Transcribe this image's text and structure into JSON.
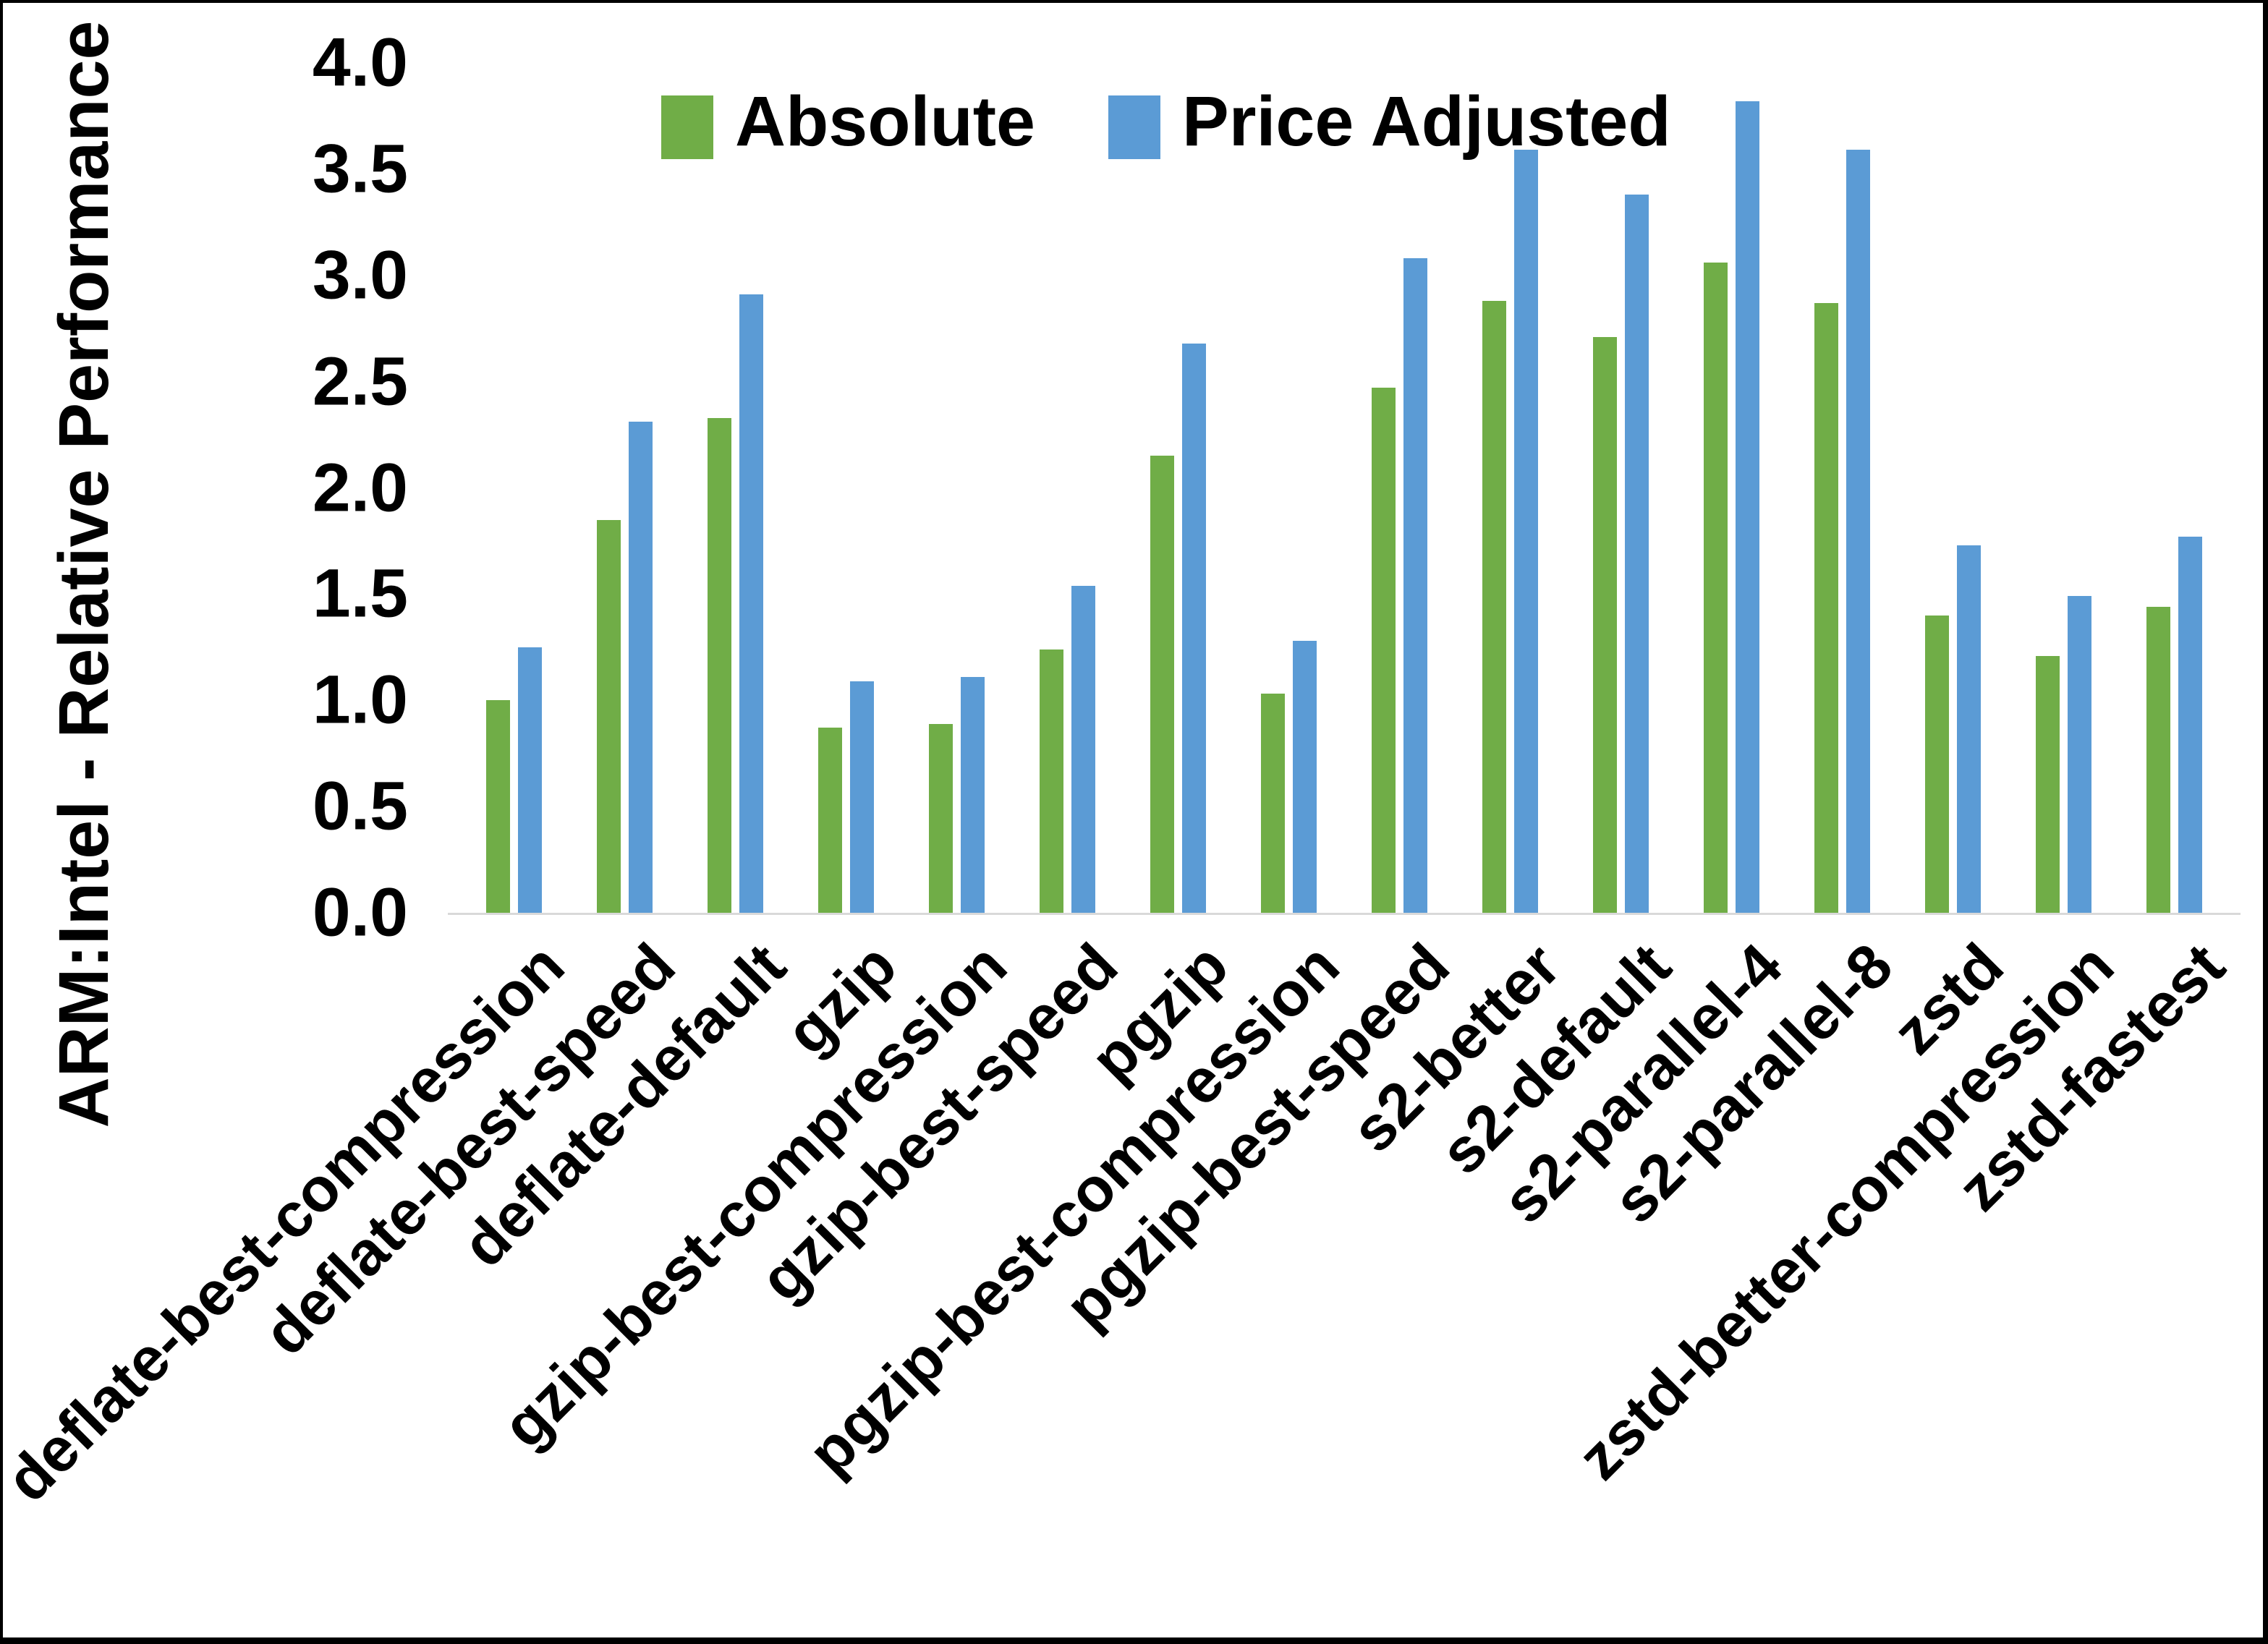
{
  "chart_data": {
    "type": "bar",
    "title": "",
    "ylabel": "ARM:Intel - Relative Performance",
    "xlabel": "",
    "ylim": [
      0.0,
      4.0
    ],
    "ytick_step": 0.5,
    "ytick_labels": [
      "0.0",
      "0.5",
      "1.0",
      "1.5",
      "2.0",
      "2.5",
      "3.0",
      "3.5",
      "4.0"
    ],
    "grid": false,
    "legend_position": "top",
    "categories": [
      "deflate-best-compression",
      "deflate-best-speed",
      "deflate-default",
      "gzip",
      "gzip-best-compression",
      "gzip-best-speed",
      "pgzip",
      "pgzip-best-compression",
      "pgzip-best-speed",
      "s2-better",
      "s2-default",
      "s2-parallel-4",
      "s2-parallel-8",
      "zstd",
      "zstd-better-compression",
      "zstd-fastest"
    ],
    "series": [
      {
        "name": "Absolute",
        "color": "#70AD47",
        "values": [
          1.0,
          1.85,
          2.33,
          0.87,
          0.89,
          1.24,
          2.15,
          1.03,
          2.47,
          2.88,
          2.71,
          3.06,
          2.87,
          1.4,
          1.21,
          1.44
        ]
      },
      {
        "name": "Price Adjusted",
        "color": "#5B9BD5",
        "values": [
          1.25,
          2.31,
          2.91,
          1.09,
          1.11,
          1.54,
          2.68,
          1.28,
          3.08,
          3.59,
          3.38,
          3.82,
          3.59,
          1.73,
          1.49,
          1.77
        ]
      }
    ],
    "axis_line_color": "#d9d9d9",
    "text_color": "#000000"
  }
}
